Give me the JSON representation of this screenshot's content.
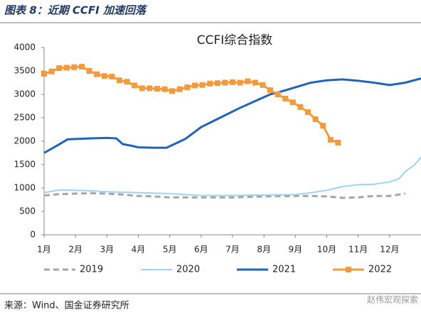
{
  "header": "图表 8：近期 CCFI 加速回落",
  "source": "来源：Wind、国金证券研究所",
  "watermark": "赵伟宏观探索",
  "chart_data": {
    "type": "line",
    "title": "CCFI综合指数",
    "xlim": [
      0,
      12
    ],
    "ylim": [
      0,
      4000
    ],
    "xticks": [
      {
        "value": 0,
        "label": "1月"
      },
      {
        "value": 1,
        "label": "2月"
      },
      {
        "value": 2,
        "label": "3月"
      },
      {
        "value": 3,
        "label": "4月"
      },
      {
        "value": 4,
        "label": "5月"
      },
      {
        "value": 5,
        "label": "6月"
      },
      {
        "value": 6,
        "label": "7月"
      },
      {
        "value": 7,
        "label": "8月"
      },
      {
        "value": 8,
        "label": "9月"
      },
      {
        "value": 9,
        "label": "10月"
      },
      {
        "value": 10,
        "label": "11月"
      },
      {
        "value": 11,
        "label": "12月"
      }
    ],
    "yticks": [
      0,
      500,
      1000,
      1500,
      2000,
      2500,
      3000,
      3500,
      4000
    ],
    "grid": false,
    "legend": "bottom",
    "series": [
      {
        "name": "2019",
        "color": "#a6a6a6",
        "line_style": "dashed",
        "x": [
          0,
          0.5,
          1,
          1.5,
          2,
          2.5,
          3,
          3.5,
          4,
          5,
          6,
          7,
          8,
          8.5,
          9,
          9.5,
          10,
          10.5,
          11,
          11.5
        ],
        "values": [
          840,
          870,
          880,
          890,
          880,
          860,
          830,
          820,
          800,
          800,
          800,
          820,
          830,
          830,
          820,
          790,
          800,
          830,
          830,
          880
        ]
      },
      {
        "name": "2020",
        "color": "#9fd3f2",
        "line_style": "double",
        "x": [
          0,
          0.5,
          1,
          1.5,
          2,
          2.5,
          3,
          3.5,
          4,
          4.5,
          5,
          6,
          7,
          8,
          8.5,
          9,
          9.5,
          10,
          10.5,
          11,
          11.3,
          11.5,
          11.8,
          12
        ],
        "values": [
          900,
          960,
          950,
          940,
          920,
          910,
          900,
          890,
          880,
          860,
          840,
          840,
          850,
          860,
          900,
          950,
          1030,
          1070,
          1080,
          1130,
          1200,
          1350,
          1500,
          1660
        ]
      },
      {
        "name": "2021",
        "color": "#1f64b8",
        "line_style": "solid",
        "x": [
          0,
          0.4,
          0.75,
          1.5,
          2,
          2.3,
          2.5,
          2.8,
          3,
          3.5,
          3.9,
          4.5,
          5,
          5.6,
          6.2,
          6.8,
          7.2,
          7.5,
          8,
          8.5,
          9,
          9.5,
          10,
          10.5,
          11,
          11.5,
          12
        ],
        "values": [
          1750,
          1900,
          2040,
          2060,
          2070,
          2060,
          1940,
          1900,
          1870,
          1860,
          1860,
          2050,
          2300,
          2500,
          2700,
          2880,
          3000,
          3050,
          3150,
          3250,
          3300,
          3320,
          3290,
          3250,
          3200,
          3250,
          3340
        ]
      },
      {
        "name": "2022",
        "color": "#f39a3c",
        "line_style": "solid",
        "marker": "square",
        "x": [
          0,
          0.24,
          0.48,
          0.72,
          0.96,
          1.2,
          1.44,
          1.68,
          1.92,
          2.16,
          2.4,
          2.64,
          2.88,
          3.12,
          3.36,
          3.6,
          3.84,
          4.08,
          4.32,
          4.56,
          4.8,
          5.04,
          5.28,
          5.52,
          5.76,
          6.0,
          6.24,
          6.48,
          6.72,
          6.96,
          7.2,
          7.44,
          7.68,
          7.92,
          8.16,
          8.4,
          8.64,
          8.88,
          9.12,
          9.36
        ],
        "values": [
          3440,
          3490,
          3560,
          3570,
          3580,
          3590,
          3500,
          3430,
          3390,
          3380,
          3300,
          3270,
          3190,
          3130,
          3130,
          3120,
          3110,
          3070,
          3110,
          3150,
          3190,
          3200,
          3230,
          3240,
          3250,
          3260,
          3250,
          3280,
          3250,
          3200,
          3090,
          3000,
          2910,
          2830,
          2730,
          2620,
          2470,
          2330,
          2030,
          1970
        ]
      }
    ]
  }
}
